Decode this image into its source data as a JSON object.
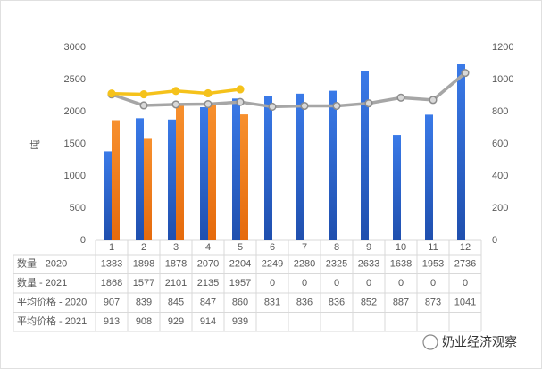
{
  "chart_data": {
    "type": "bar-line-table",
    "y_label": "吨",
    "categories": [
      "1",
      "2",
      "3",
      "4",
      "5",
      "6",
      "7",
      "8",
      "9",
      "10",
      "11",
      "12"
    ],
    "series": [
      {
        "name": "数量 - 2020",
        "color": "#2e6ad6",
        "type": "bar",
        "values": [
          1383,
          1898,
          1878,
          2070,
          2204,
          2249,
          2280,
          2325,
          2633,
          1638,
          1953,
          2736
        ]
      },
      {
        "name": "数量 - 2021",
        "color": "#f58220",
        "type": "bar",
        "values": [
          1868,
          1577,
          2101,
          2135,
          1957,
          0,
          0,
          0,
          0,
          0,
          0,
          0
        ]
      },
      {
        "name": "平均价格 - 2020",
        "color": "#a6a6a6",
        "type": "line",
        "axis": "y2",
        "values": [
          907,
          839,
          845,
          847,
          860,
          831,
          836,
          836,
          852,
          887,
          873,
          1041
        ]
      },
      {
        "name": "平均价格 - 2021",
        "color": "#f5c21b",
        "type": "line",
        "axis": "y2",
        "values": [
          913,
          908,
          929,
          914,
          939,
          null,
          null,
          null,
          null,
          null,
          null,
          null
        ]
      }
    ],
    "ylim": [
      0,
      3000
    ],
    "yticks": [
      0,
      500,
      1000,
      1500,
      2000,
      2500,
      3000
    ],
    "y2lim": [
      0,
      1200
    ],
    "y2ticks": [
      0,
      200,
      400,
      600,
      800,
      1000,
      1200
    ],
    "watermark": "奶业经济观察"
  }
}
